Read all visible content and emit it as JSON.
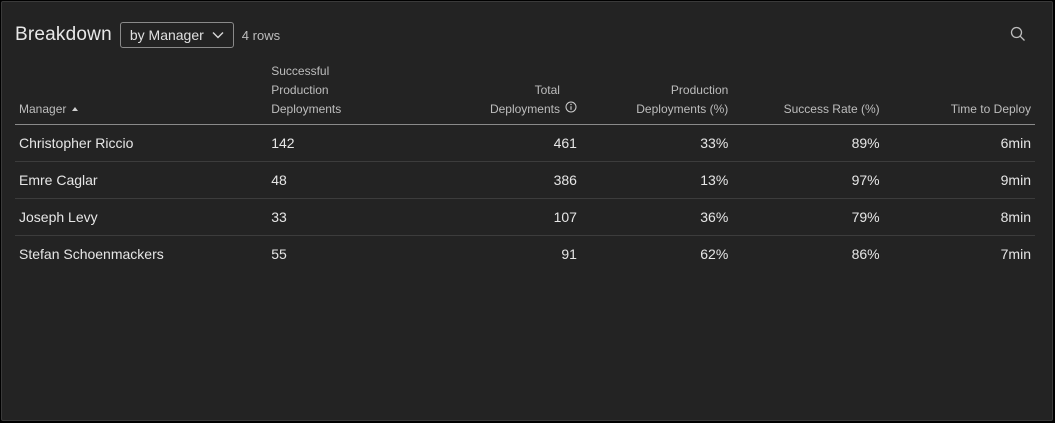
{
  "header": {
    "title": "Breakdown",
    "group_by": "by Manager",
    "row_count": "4 rows"
  },
  "icons": {
    "dropdown": "chevron-down-icon",
    "search": "search-icon",
    "info": "info-icon",
    "sort": "sort-ascending-icon"
  },
  "table": {
    "columns": [
      {
        "label": "Manager",
        "sort": "ascending"
      },
      {
        "label_lines": [
          "Successful",
          "Production",
          "Deployments"
        ]
      },
      {
        "label_lines": [
          "Total",
          "Deployments"
        ],
        "info": true
      },
      {
        "label_lines": [
          "Production",
          "Deployments (%)"
        ]
      },
      {
        "label": "Success Rate (%)"
      },
      {
        "label": "Time to Deploy"
      }
    ],
    "rows": [
      {
        "manager": "Christopher Riccio",
        "successful": "142",
        "total": "461",
        "prod_pct": "33%",
        "success_rate": "89%",
        "time": "6min"
      },
      {
        "manager": "Emre Caglar",
        "successful": "48",
        "total": "386",
        "prod_pct": "13%",
        "success_rate": "97%",
        "time": "9min"
      },
      {
        "manager": "Joseph Levy",
        "successful": "33",
        "total": "107",
        "prod_pct": "36%",
        "success_rate": "79%",
        "time": "8min"
      },
      {
        "manager": "Stefan Schoenmackers",
        "successful": "55",
        "total": "91",
        "prod_pct": "62%",
        "success_rate": "86%",
        "time": "7min"
      }
    ]
  }
}
